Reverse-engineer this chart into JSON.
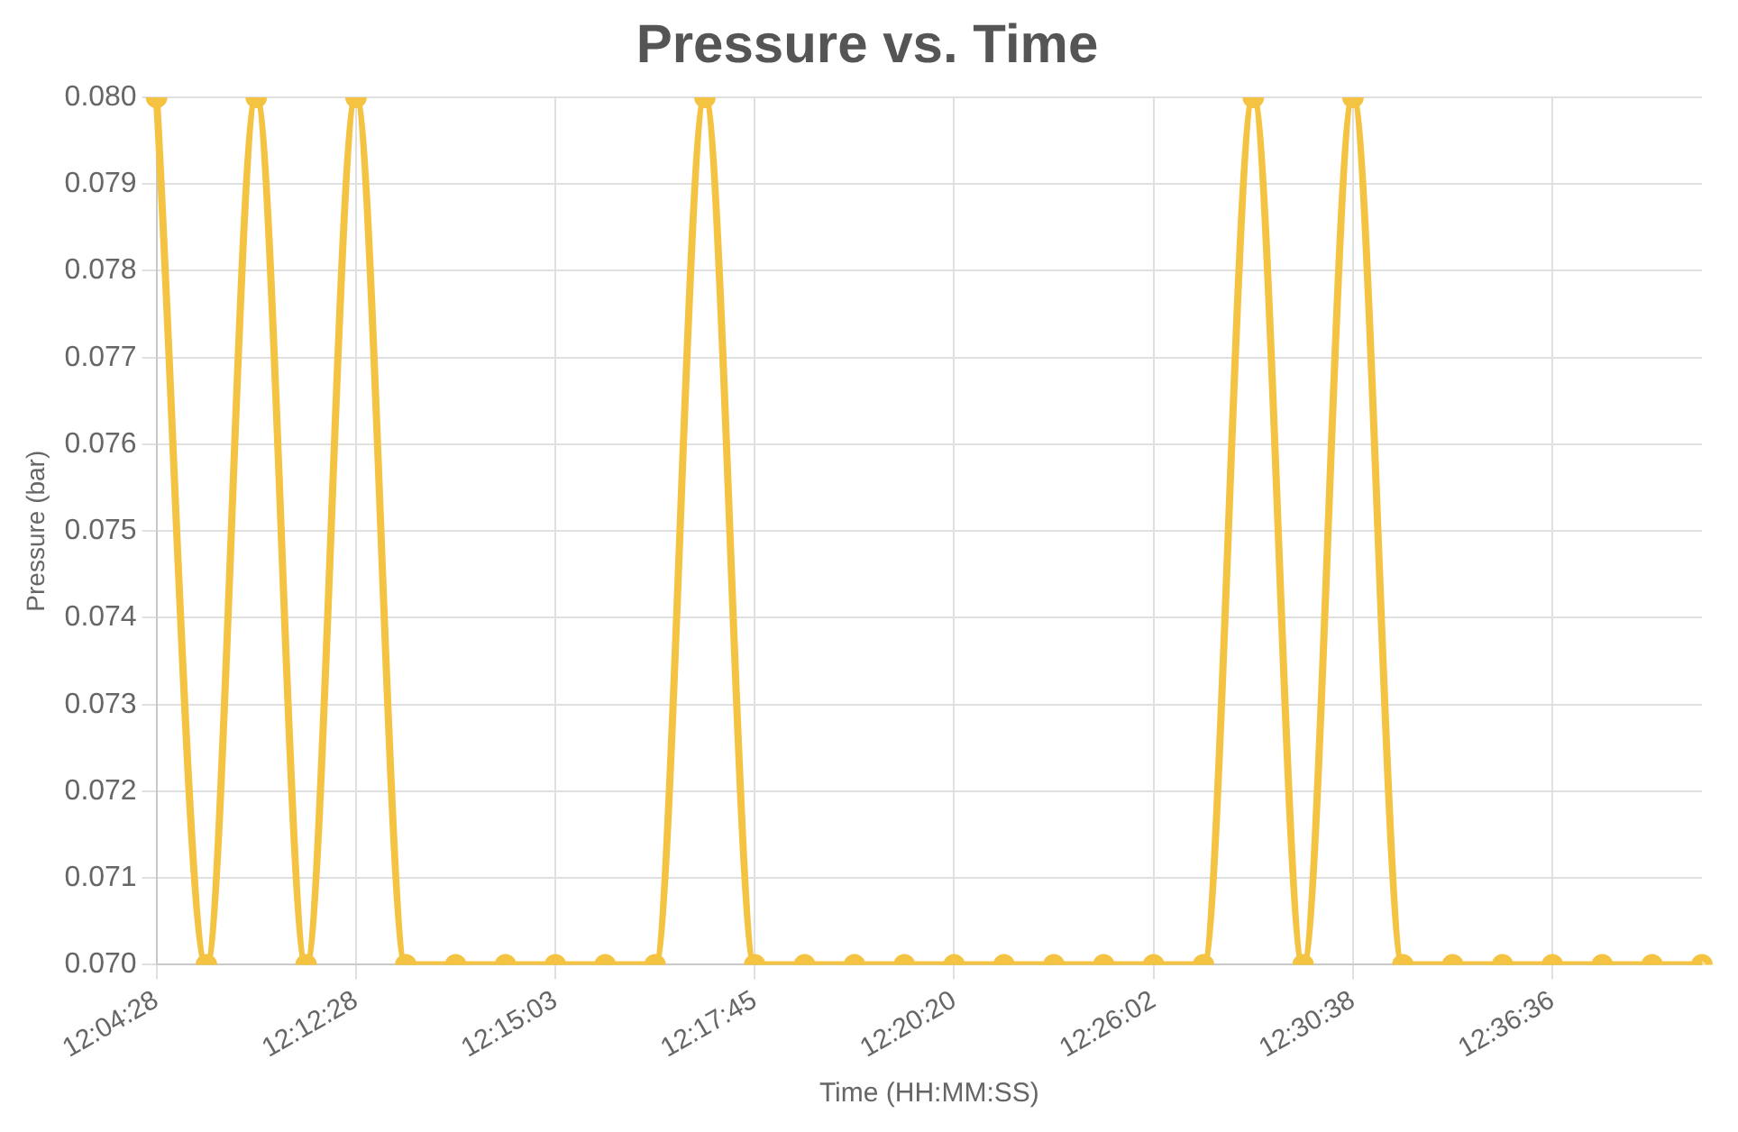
{
  "chart_data": {
    "type": "line",
    "title": "Pressure vs. Time",
    "xlabel": "Time (HH:MM:SS)",
    "ylabel": "Pressure (bar)",
    "categories": [
      "12:04:28",
      null,
      null,
      null,
      "12:12:28",
      null,
      null,
      null,
      "12:15:03",
      null,
      null,
      null,
      "12:17:45",
      null,
      null,
      null,
      "12:20:20",
      null,
      null,
      null,
      "12:26:02",
      null,
      null,
      null,
      "12:30:38",
      null,
      null,
      null,
      "12:36:36",
      null,
      null,
      null
    ],
    "series": [
      {
        "color": "#f5c342",
        "values": [
          0.08,
          0.07,
          0.08,
          0.07,
          0.08,
          0.07,
          0.07,
          0.07,
          0.07,
          0.07,
          0.07,
          0.08,
          0.07,
          0.07,
          0.07,
          0.07,
          0.07,
          0.07,
          0.07,
          0.07,
          0.07,
          0.07,
          0.08,
          0.07,
          0.08,
          0.07,
          0.07,
          0.07,
          0.07,
          0.07,
          0.07,
          0.07
        ]
      }
    ],
    "ylim": [
      0.07,
      0.08
    ],
    "yticks": [
      {
        "value": 0.07,
        "label": "0.070"
      },
      {
        "value": 0.071,
        "label": "0.071"
      },
      {
        "value": 0.072,
        "label": "0.072"
      },
      {
        "value": 0.073,
        "label": "0.073"
      },
      {
        "value": 0.074,
        "label": "0.074"
      },
      {
        "value": 0.075,
        "label": "0.075"
      },
      {
        "value": 0.076,
        "label": "0.076"
      },
      {
        "value": 0.077,
        "label": "0.077"
      },
      {
        "value": 0.078,
        "label": "0.078"
      },
      {
        "value": 0.079,
        "label": "0.079"
      },
      {
        "value": 0.08,
        "label": "0.080"
      }
    ],
    "grid": true,
    "legend": false,
    "marker": "circle",
    "line_style": "solid"
  }
}
